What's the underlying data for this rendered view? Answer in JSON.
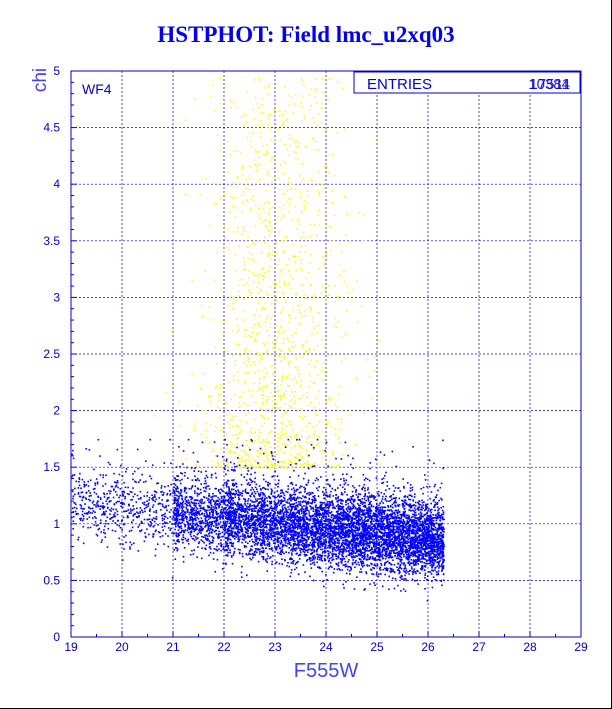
{
  "chart_data": {
    "type": "scatter",
    "title": "HSTPHOT: Field lmc_u2xq03",
    "xlabel": "F555W",
    "ylabel": "chi",
    "xlim": [
      19,
      29
    ],
    "ylim": [
      0,
      5
    ],
    "x_ticks": [
      "19",
      "20",
      "21",
      "22",
      "23",
      "24",
      "25",
      "26",
      "27",
      "28",
      "29"
    ],
    "y_ticks": [
      "0",
      "0.5",
      "1",
      "1.5",
      "2",
      "2.5",
      "3",
      "3.5",
      "4",
      "4.5",
      "5"
    ],
    "grid": true,
    "annotations": {
      "panel_label": "WF4",
      "stats_label": "ENTRIES",
      "stats_value_a": "17511",
      "stats_value_b": "10384"
    },
    "series": [
      {
        "color": "#ffff00",
        "approx_points": 1400
      },
      {
        "color": "#0000ff",
        "approx_points": 7600
      }
    ]
  }
}
